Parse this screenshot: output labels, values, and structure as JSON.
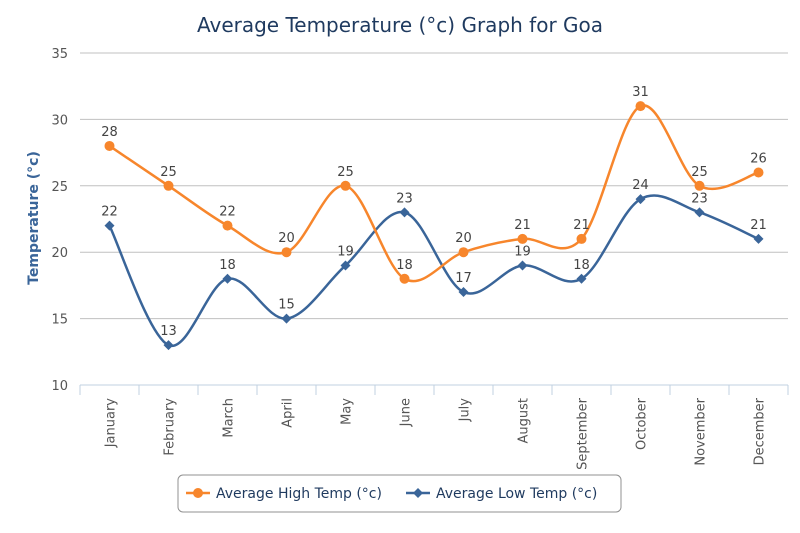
{
  "chart_data": {
    "type": "line",
    "title": "Average Temperature (°c) Graph for Goa",
    "xlabel": "",
    "ylabel": "Temperature (°c)",
    "ylim": [
      10,
      35
    ],
    "yticks": [
      10,
      15,
      20,
      25,
      30,
      35
    ],
    "categories": [
      "January",
      "February",
      "March",
      "April",
      "May",
      "June",
      "July",
      "August",
      "September",
      "October",
      "November",
      "December"
    ],
    "grid": true,
    "legend_position": "bottom",
    "series": [
      {
        "name": "Average High Temp (°c)",
        "color": "#f7862c",
        "marker": "circle",
        "values": [
          28,
          25,
          22,
          20,
          25,
          18,
          20,
          21,
          21,
          31,
          25,
          26
        ]
      },
      {
        "name": "Average Low Temp (°c)",
        "color": "#3a6599",
        "marker": "diamond",
        "values": [
          22,
          13,
          18,
          15,
          19,
          23,
          17,
          19,
          18,
          24,
          23,
          21
        ]
      }
    ]
  }
}
